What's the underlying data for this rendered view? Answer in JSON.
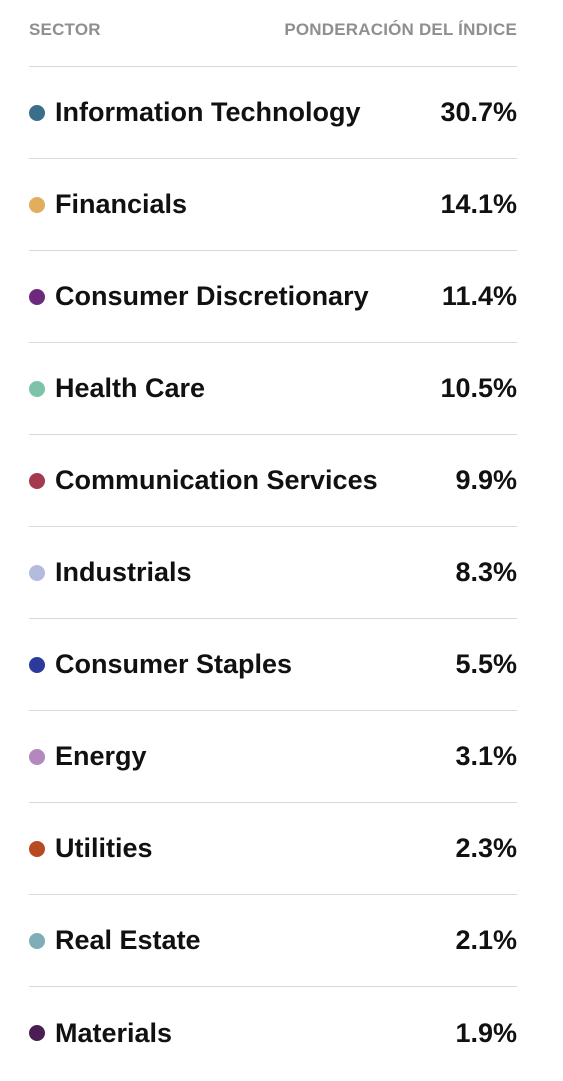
{
  "header": {
    "sector_label": "SECTOR",
    "weight_label": "PONDERACIÓN DEL ÍNDICE"
  },
  "chart_data": {
    "type": "table",
    "columns": [
      "SECTOR",
      "PONDERACIÓN DEL ÍNDICE"
    ],
    "rows": [
      {
        "sector": "Information Technology",
        "weight": "30.7%",
        "value": 30.7,
        "color": "#3b6e8a"
      },
      {
        "sector": "Financials",
        "weight": "14.1%",
        "value": 14.1,
        "color": "#e2ad5c"
      },
      {
        "sector": "Consumer Discretionary",
        "weight": "11.4%",
        "value": 11.4,
        "color": "#6d2a7c"
      },
      {
        "sector": "Health Care",
        "weight": "10.5%",
        "value": 10.5,
        "color": "#7dc3a9"
      },
      {
        "sector": "Communication Services",
        "weight": "9.9%",
        "value": 9.9,
        "color": "#a5394e"
      },
      {
        "sector": "Industrials",
        "weight": "8.3%",
        "value": 8.3,
        "color": "#b3bcdf"
      },
      {
        "sector": "Consumer Staples",
        "weight": "5.5%",
        "value": 5.5,
        "color": "#2c3a9e"
      },
      {
        "sector": "Energy",
        "weight": "3.1%",
        "value": 3.1,
        "color": "#b388be"
      },
      {
        "sector": "Utilities",
        "weight": "2.3%",
        "value": 2.3,
        "color": "#b84a22"
      },
      {
        "sector": "Real Estate",
        "weight": "2.1%",
        "value": 2.1,
        "color": "#7fadb8"
      },
      {
        "sector": "Materials",
        "weight": "1.9%",
        "value": 1.9,
        "color": "#4a1e52"
      }
    ]
  }
}
